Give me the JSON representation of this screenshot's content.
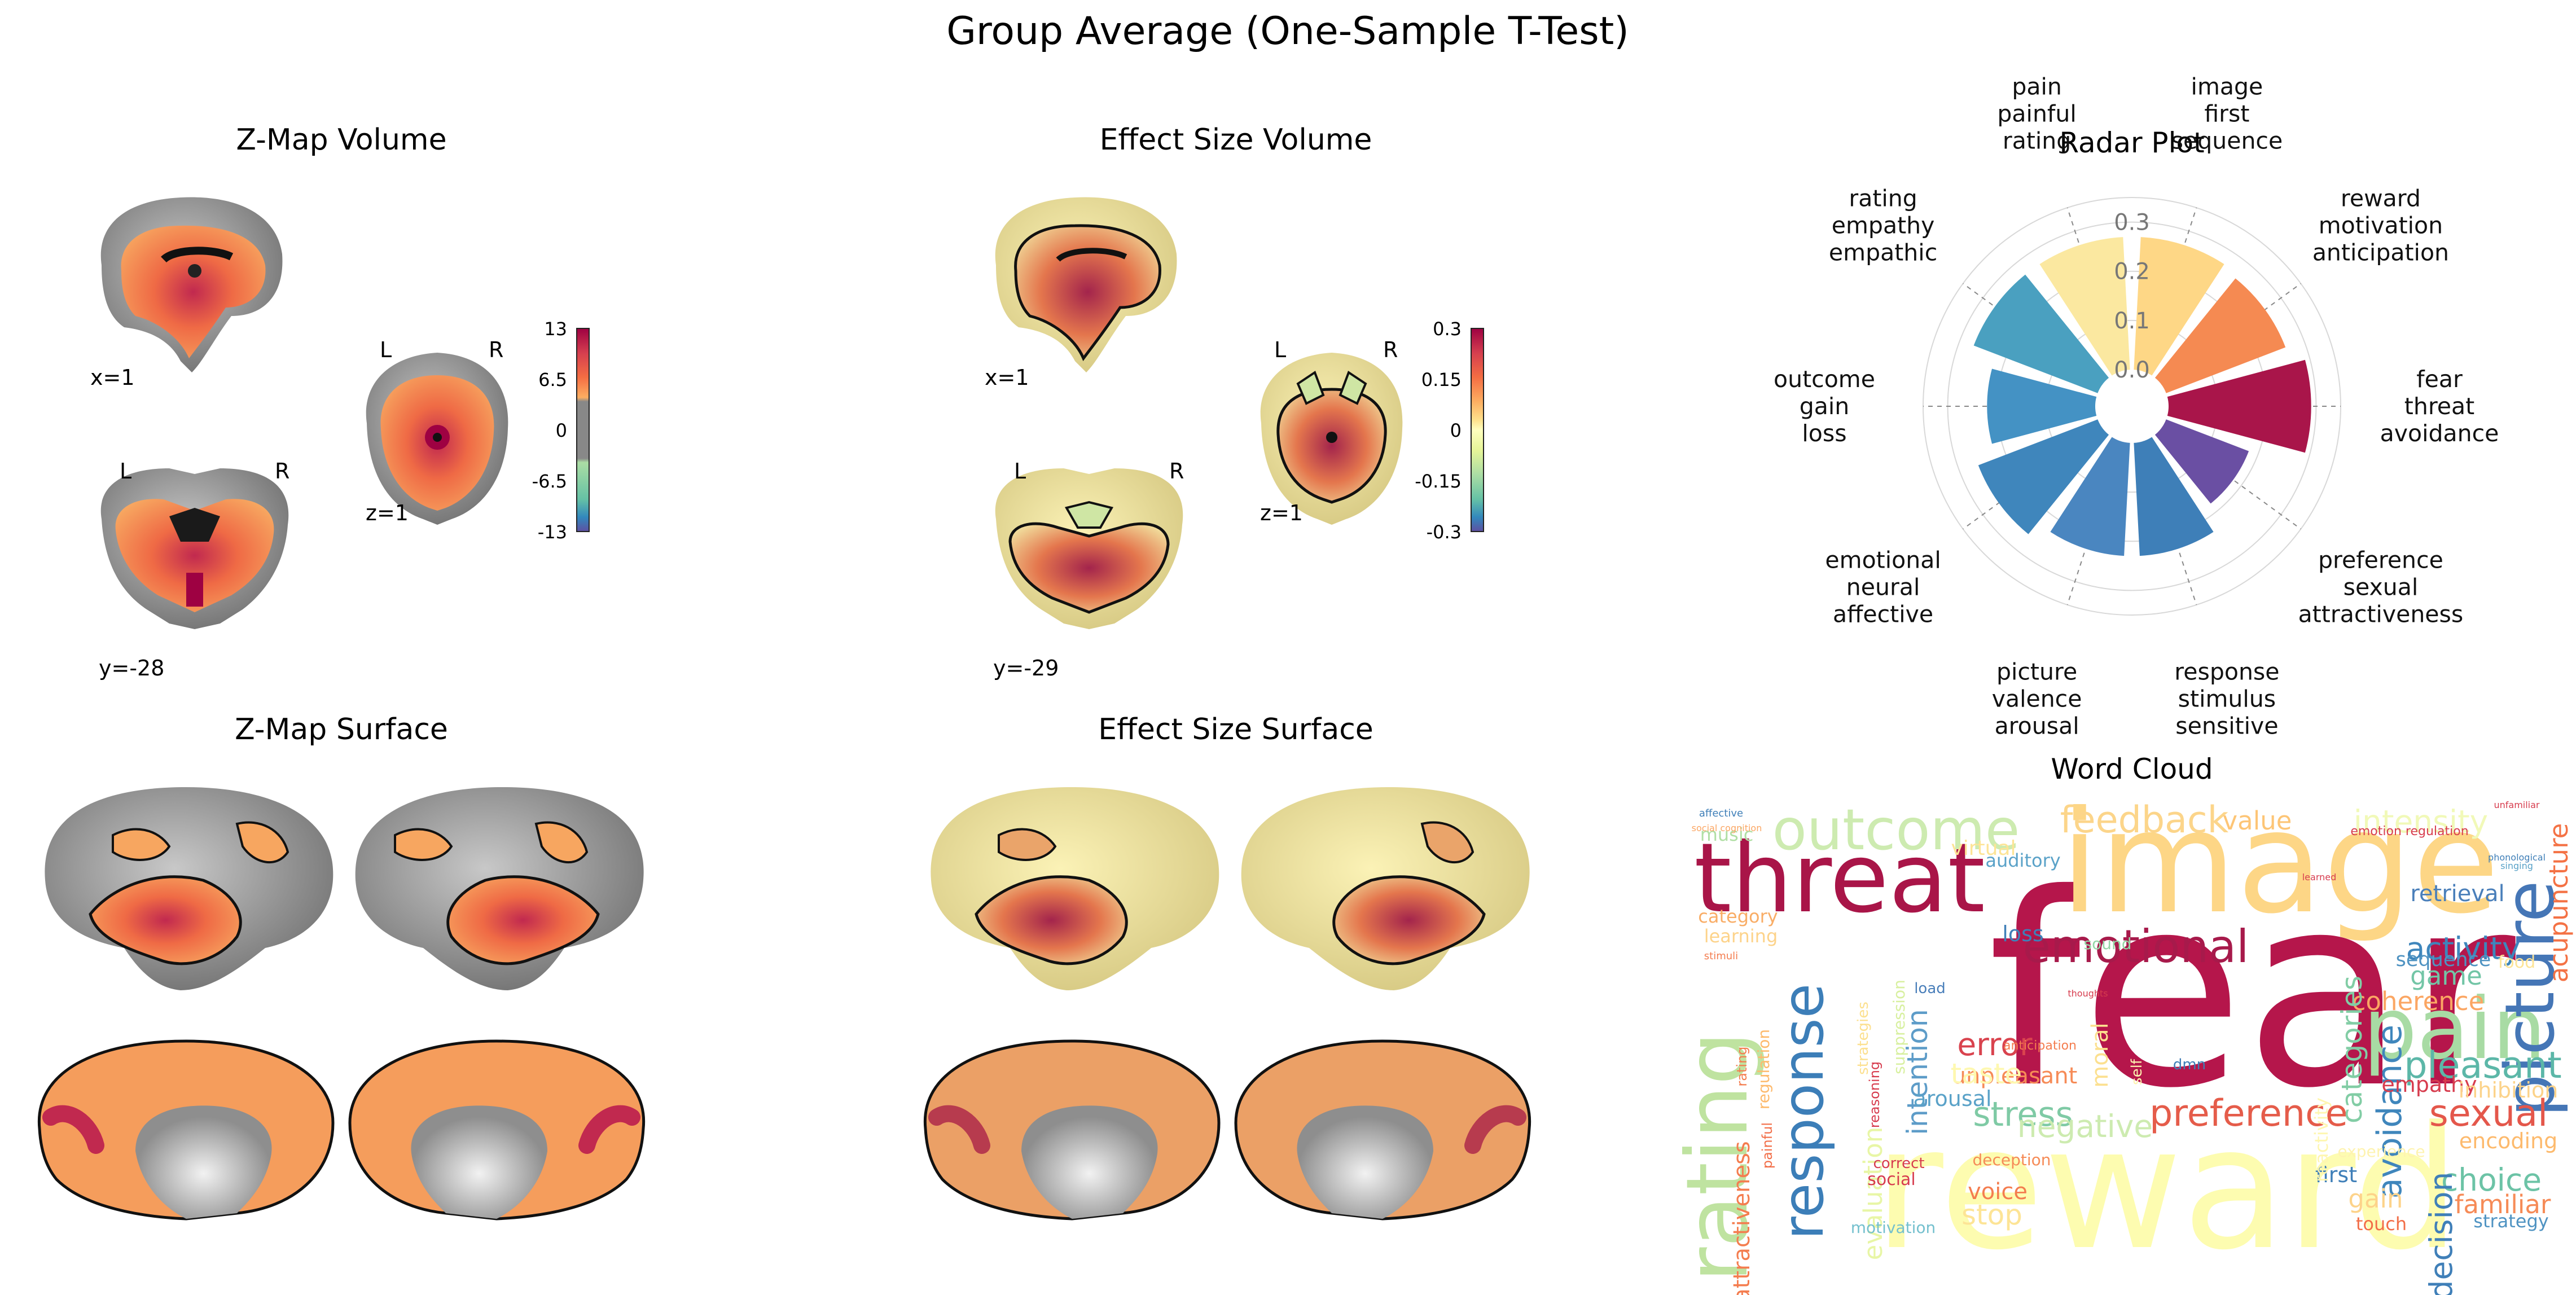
{
  "title": "Group Average (One-Sample T-Test)",
  "panels": {
    "zmap_volume": {
      "title": "Z-Map Volume",
      "coords": {
        "sagittal": "x=1",
        "coronal": "y=-28",
        "axial": "z=1"
      },
      "orient": {
        "left": "L",
        "right": "R"
      },
      "colorbar_ticks": [
        "13",
        "6.5",
        "0",
        "-6.5",
        "-13"
      ]
    },
    "effect_volume": {
      "title": "Effect Size Volume",
      "coords": {
        "sagittal": "x=1",
        "coronal": "y=-29",
        "axial": "z=1"
      },
      "orient": {
        "left": "L",
        "right": "R"
      },
      "colorbar_ticks": [
        "0.3",
        "0.15",
        "0",
        "-0.15",
        "-0.3"
      ]
    },
    "zmap_surface": {
      "title": "Z-Map Surface"
    },
    "effect_surface": {
      "title": "Effect Size Surface"
    },
    "radar": {
      "title": "Radar Plot"
    },
    "wordcloud": {
      "title": "Word Cloud",
      "words": [
        {
          "text": "fear",
          "color": "#b5164b"
        },
        {
          "text": "reward",
          "color": "#fdfcb0"
        },
        {
          "text": "image",
          "color": "#fdd686"
        },
        {
          "text": "threat",
          "color": "#a91548"
        },
        {
          "text": "pain",
          "color": "#a8dba4"
        },
        {
          "text": "outcome",
          "color": "#cdebb0"
        },
        {
          "text": "rating",
          "color": "#bfe3a0"
        },
        {
          "text": "picture",
          "color": "#4576b6"
        },
        {
          "text": "emotional",
          "color": "#a71a4b"
        },
        {
          "text": "response",
          "color": "#3c7eb8"
        },
        {
          "text": "feedback",
          "color": "#fcd58a"
        },
        {
          "text": "preference",
          "color": "#e55c4a"
        },
        {
          "text": "sexual",
          "color": "#e4574b"
        },
        {
          "text": "pleasant",
          "color": "#5cb7a8"
        },
        {
          "text": "activity",
          "color": "#3e86bc"
        },
        {
          "text": "intensity",
          "color": "#f1f9b8"
        },
        {
          "text": "value",
          "color": "#fdc576"
        },
        {
          "text": "stress",
          "color": "#7fcaa5"
        },
        {
          "text": "negative",
          "color": "#cdebb0"
        },
        {
          "text": "error",
          "color": "#d9434e"
        },
        {
          "text": "choice",
          "color": "#6cc3a6"
        },
        {
          "text": "decision",
          "color": "#3f7fb8"
        },
        {
          "text": "avoidance",
          "color": "#3f86bc"
        },
        {
          "text": "attractiveness",
          "color": "#f47d4f"
        },
        {
          "text": "acupuncture",
          "color": "#f47245"
        },
        {
          "text": "coherence",
          "color": "#fba663"
        },
        {
          "text": "familiar",
          "color": "#f68b57"
        },
        {
          "text": "categories",
          "color": "#82cda5"
        },
        {
          "text": "evaluation",
          "color": "#e8f6a6"
        },
        {
          "text": "empathy",
          "color": "#d73c4e"
        },
        {
          "text": "inhibition",
          "color": "#fcd38a"
        },
        {
          "text": "encoding",
          "color": "#fdba6d"
        },
        {
          "text": "intention",
          "color": "#5d9cc8"
        },
        {
          "text": "game",
          "color": "#72c5a6"
        },
        {
          "text": "retrieval",
          "color": "#4a7fba"
        },
        {
          "text": "sequence",
          "color": "#4f93c2"
        },
        {
          "text": "category",
          "color": "#f9ad66"
        },
        {
          "text": "learning",
          "color": "#fdd38a"
        },
        {
          "text": "music",
          "color": "#b0dfa4"
        },
        {
          "text": "arousal",
          "color": "#5aa2c8"
        },
        {
          "text": "unpleasant",
          "color": "#f68b57"
        },
        {
          "text": "loss",
          "color": "#3f7fb8"
        },
        {
          "text": "auditory",
          "color": "#5aa2c8"
        },
        {
          "text": "taste",
          "color": "#fef8b0"
        },
        {
          "text": "moral",
          "color": "#fce08f"
        },
        {
          "text": "first",
          "color": "#3f7fb8"
        },
        {
          "text": "gain",
          "color": "#fdd38a"
        },
        {
          "text": "stop",
          "color": "#fde496"
        },
        {
          "text": "voice",
          "color": "#f47d4f"
        },
        {
          "text": "touch",
          "color": "#f26e48"
        },
        {
          "text": "strategy",
          "color": "#4f93c2"
        },
        {
          "text": "social",
          "color": "#d73c4e"
        },
        {
          "text": "experience",
          "color": "#fef3b0"
        },
        {
          "text": "motivation",
          "color": "#74c0ce"
        },
        {
          "text": "regulation",
          "color": "#fdba6d"
        },
        {
          "text": "suppression",
          "color": "#d8f0a0"
        },
        {
          "text": "reactivity",
          "color": "#fef6b0"
        },
        {
          "text": "food",
          "color": "#fde496"
        },
        {
          "text": "correct",
          "color": "#d73c4e"
        },
        {
          "text": "deception",
          "color": "#f68b57"
        },
        {
          "text": "painful",
          "color": "#f26e48"
        },
        {
          "text": "reasoning",
          "color": "#d73c4e"
        },
        {
          "text": "virtual",
          "color": "#fde496"
        },
        {
          "text": "sound",
          "color": "#94d6a6"
        },
        {
          "text": "load",
          "color": "#4a7fba"
        },
        {
          "text": "dmn",
          "color": "#3f7fb8"
        },
        {
          "text": "strategies",
          "color": "#fce08f"
        },
        {
          "text": "anticipation",
          "color": "#f47d4f"
        },
        {
          "text": "emotion regulation",
          "color": "#d73c4e"
        },
        {
          "text": "self",
          "color": "#fef3b0"
        },
        {
          "text": "affective",
          "color": "#3f7fb8"
        },
        {
          "text": "stimuli",
          "color": "#f47d4f"
        },
        {
          "text": "social cognition",
          "color": "#fba663"
        },
        {
          "text": "unfamiliar",
          "color": "#d73c4e"
        },
        {
          "text": "learned",
          "color": "#d73c4e"
        },
        {
          "text": "singing",
          "color": "#5aa2c8"
        },
        {
          "text": "phonological",
          "color": "#3f7fb8"
        },
        {
          "text": "thoughts",
          "color": "#d73c4e"
        },
        {
          "text": "rating",
          "color": "#f47d4f"
        }
      ]
    }
  },
  "chart_data": [
    {
      "type": "radar",
      "title": "Radar Plot",
      "rlim": [
        0,
        0.35
      ],
      "rticks": [
        "0.0",
        "0.1",
        "0.2",
        "0.3"
      ],
      "categories": [
        "fear\nthreat\navoidance",
        "reward\nmotivation\nanticipation",
        "image\nfirst\nsequence",
        "pain\npainful\nrating",
        "rating\nempathy\nempathic",
        "outcome\ngain\nloss",
        "emotional\nneural\naffective",
        "picture\nvalence\narousal",
        "response\nstimulus\nsensitive",
        "preference\nsexual\nattractiveness"
      ],
      "values": [
        0.29,
        0.26,
        0.27,
        0.27,
        0.27,
        0.22,
        0.26,
        0.23,
        0.23,
        0.18
      ],
      "colors": [
        "#a9154a",
        "#f58a52",
        "#fed786",
        "#fbe8a0",
        "#4aa0c0",
        "#4492c4",
        "#3f86bc",
        "#4a86c0",
        "#3e7fb8",
        "#6a4fa3"
      ]
    }
  ]
}
